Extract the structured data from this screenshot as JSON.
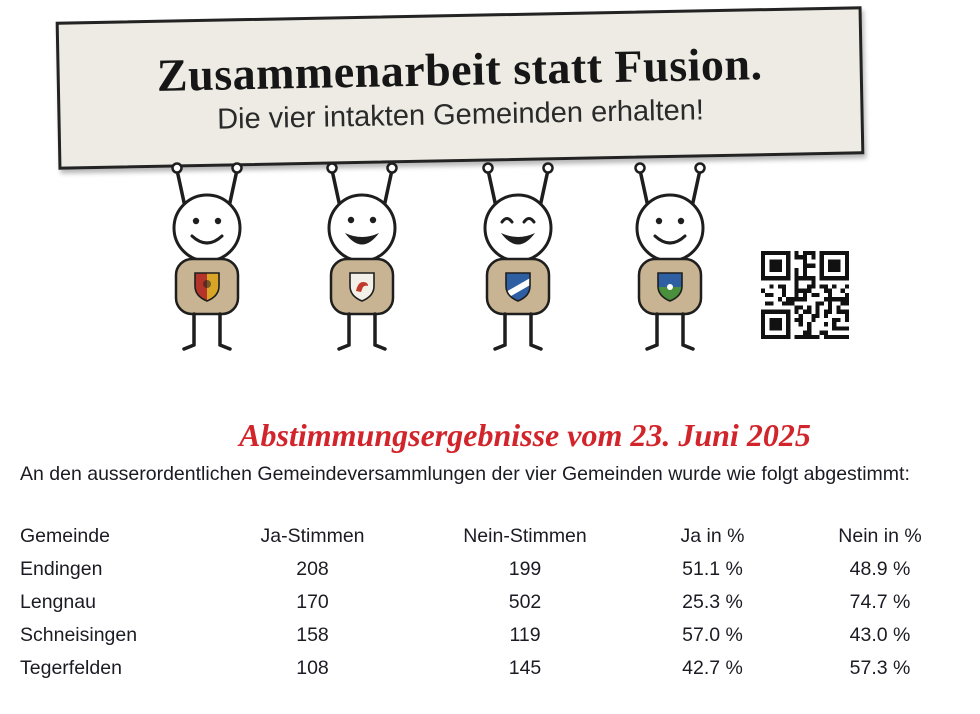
{
  "poster": {
    "sign": {
      "title": "Zusammenarbeit statt Fusion.",
      "subtitle": "Die vier intakten Gemeinden erhalten!"
    },
    "figures": [
      {
        "name": "figure-1",
        "shield_colors": [
          "#b5342a",
          "#d9a527"
        ]
      },
      {
        "name": "figure-2",
        "shield_colors": [
          "#f3f0ea",
          "#c0392b"
        ]
      },
      {
        "name": "figure-3",
        "shield_colors": [
          "#2e5fa3",
          "#ffffff"
        ]
      },
      {
        "name": "figure-4",
        "shield_colors": [
          "#2e5fa3",
          "#4a8f3c"
        ]
      }
    ],
    "qr_icon": "qr-code"
  },
  "results": {
    "heading": "Abstimmungsergebnisse vom 23. Juni 2025",
    "intro": "An den ausserordentlichen Gemeindeversammlungen der vier Gemeinden wurde wie folgt abgestimmt:",
    "table": {
      "headers": [
        "Gemeinde",
        "Ja-Stimmen",
        "Nein-Stimmen",
        "Ja in %",
        "Nein in %"
      ],
      "rows": [
        [
          "Endingen",
          "208",
          "199",
          "51.1 %",
          "48.9 %"
        ],
        [
          "Lengnau",
          "170",
          "502",
          "25.3 %",
          "74.7 %"
        ],
        [
          "Schneisingen",
          "158",
          "119",
          "57.0 %",
          "43.0 %"
        ],
        [
          "Tegerfelden",
          "108",
          "145",
          "42.7 %",
          "57.3 %"
        ]
      ]
    }
  },
  "colors": {
    "heading_red": "#d2252b",
    "text_dark": "#1b1b24",
    "sign_bg": "#edebe3",
    "body_tan": "#c8b492"
  }
}
